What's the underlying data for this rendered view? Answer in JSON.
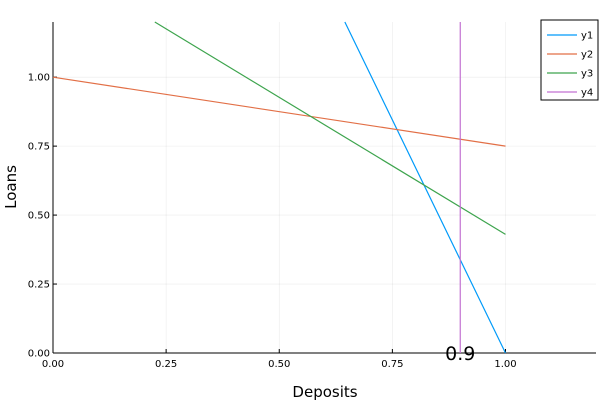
{
  "chart_data": {
    "type": "line",
    "xlabel": "Deposits",
    "ylabel": "Loans",
    "xlim": [
      0,
      1.2
    ],
    "ylim": [
      0,
      1.2
    ],
    "xticks": [
      0,
      0.25,
      0.5,
      0.75,
      1.0
    ],
    "yticks": [
      0,
      0.25,
      0.5,
      0.75,
      1.0
    ],
    "xtick_labels": [
      "0.00",
      "0.25",
      "0.50",
      "0.75",
      "1.00"
    ],
    "ytick_labels": [
      "0.00",
      "0.25",
      "0.50",
      "0.75",
      "1.00"
    ],
    "grid": true,
    "legend_position": "top-right",
    "series": [
      {
        "name": "y1",
        "color": "#009AF9",
        "x": [
          0.645,
          1.0
        ],
        "y": [
          1.2,
          0.0
        ]
      },
      {
        "name": "y2",
        "color": "#E26F46",
        "x": [
          0.0,
          1.0
        ],
        "y": [
          1.0,
          0.75
        ]
      },
      {
        "name": "y3",
        "color": "#3DA44D",
        "x": [
          0.225,
          1.0
        ],
        "y": [
          1.2,
          0.43
        ]
      },
      {
        "name": "y4",
        "color": "#C271D2",
        "x": [
          0.9,
          0.9
        ],
        "y": [
          0.0,
          1.2
        ]
      }
    ],
    "annotations": [
      {
        "text": "0.9",
        "x": 0.9,
        "y": 0.0
      }
    ]
  }
}
